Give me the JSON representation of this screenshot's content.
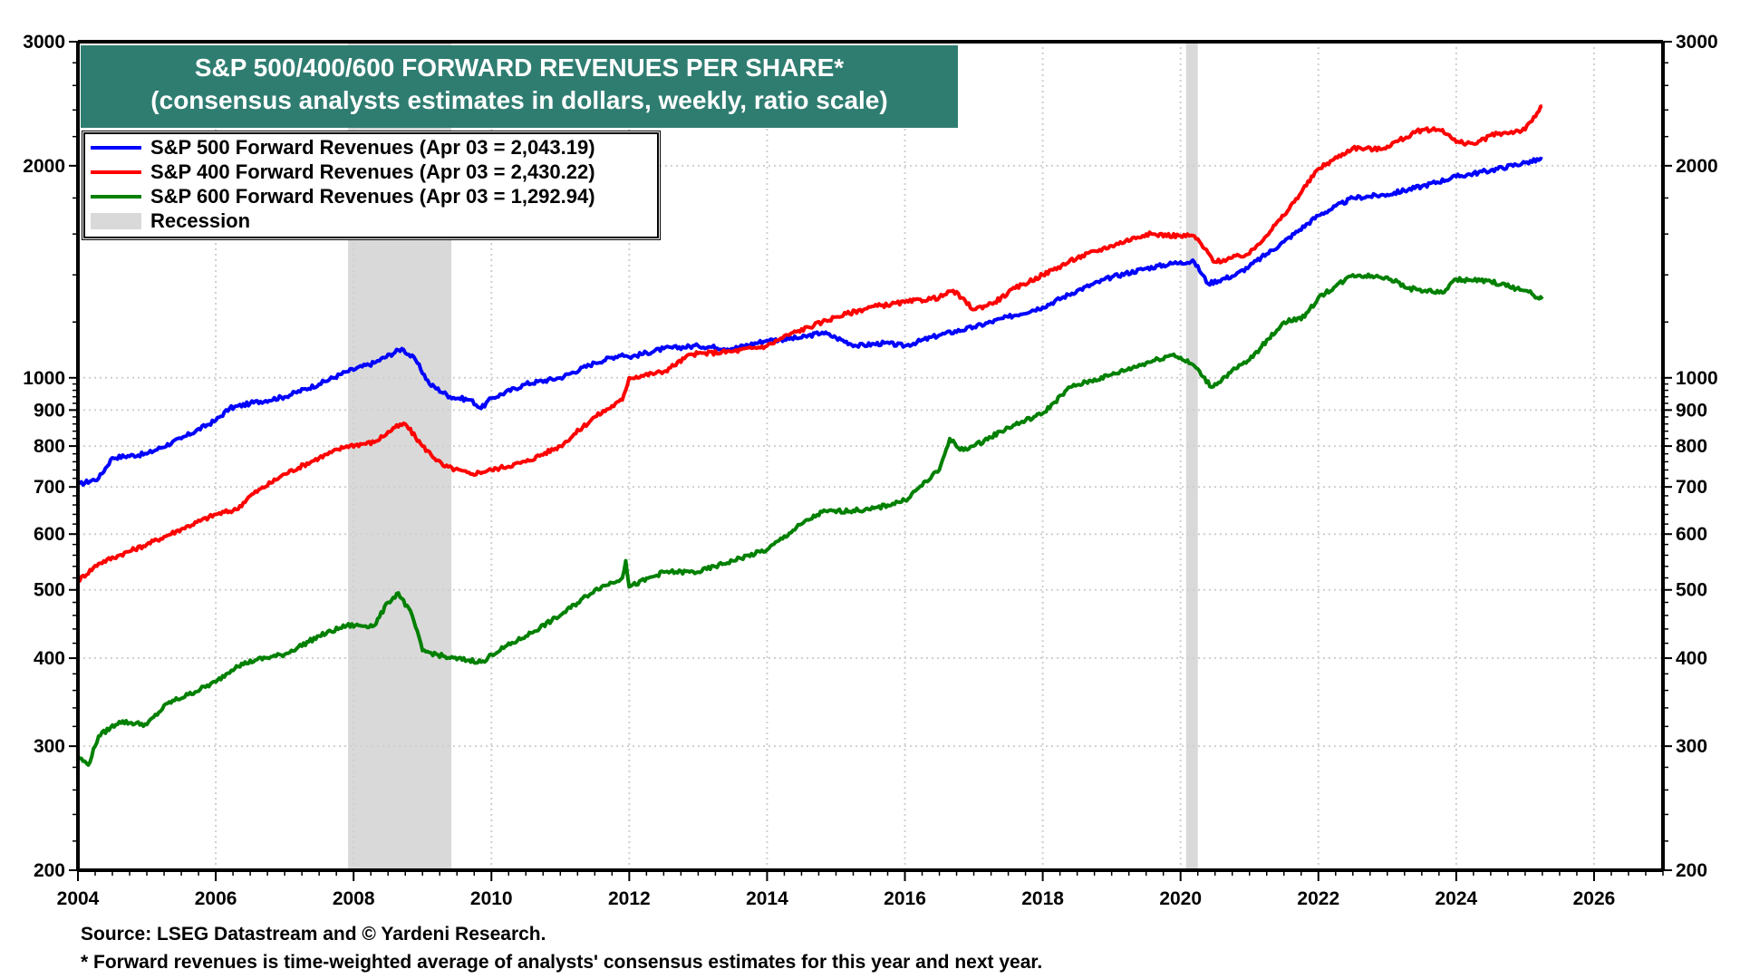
{
  "chart_data": {
    "type": "line",
    "title": "S&P 500/400/600 FORWARD REVENUES PER SHARE*",
    "subtitle": "(consensus analysts estimates in dollars, weekly, ratio scale)",
    "xlabel": "",
    "ylabel": "",
    "yscale": "log",
    "xlim": [
      2004,
      2027
    ],
    "ylim": [
      200,
      3000
    ],
    "x_ticks": [
      "2004",
      "2006",
      "2008",
      "2010",
      "2012",
      "2014",
      "2016",
      "2018",
      "2020",
      "2022",
      "2024",
      "2026"
    ],
    "y_ticks": [
      "200",
      "300",
      "400",
      "500",
      "600",
      "700",
      "800",
      "900",
      "1000",
      "2000",
      "3000"
    ],
    "y_tick_values": [
      200,
      300,
      400,
      500,
      600,
      700,
      800,
      900,
      1000,
      2000,
      3000
    ],
    "grid": true,
    "legend_position": "top-left",
    "legend": [
      "S&P 500 Forward Revenues (Apr 03 = 2,043.19)",
      "S&P 400 Forward Revenues (Apr 03 = 2,430.22)",
      "S&P 600 Forward Revenues (Apr 03 = 1,292.94)",
      "Recession"
    ],
    "recessions": [
      {
        "start": 2007.92,
        "end": 2009.42
      },
      {
        "start": 2020.08,
        "end": 2020.25
      }
    ],
    "series": [
      {
        "name": "S&P 500 Forward Revenues",
        "color": "#0000ff",
        "last_value": 2043.19,
        "points": [
          [
            2004.0,
            705
          ],
          [
            2004.3,
            720
          ],
          [
            2004.5,
            770
          ],
          [
            2005.0,
            780
          ],
          [
            2005.5,
            820
          ],
          [
            2006.0,
            870
          ],
          [
            2006.2,
            905
          ],
          [
            2006.5,
            920
          ],
          [
            2007.0,
            940
          ],
          [
            2007.5,
            980
          ],
          [
            2007.9,
            1020
          ],
          [
            2008.3,
            1050
          ],
          [
            2008.7,
            1100
          ],
          [
            2008.9,
            1060
          ],
          [
            2009.1,
            980
          ],
          [
            2009.4,
            940
          ],
          [
            2009.7,
            930
          ],
          [
            2009.85,
            905
          ],
          [
            2010.0,
            935
          ],
          [
            2010.5,
            980
          ],
          [
            2011.0,
            1000
          ],
          [
            2011.5,
            1050
          ],
          [
            2011.9,
            1080
          ],
          [
            2012.0,
            1070
          ],
          [
            2012.5,
            1100
          ],
          [
            2013.0,
            1110
          ],
          [
            2013.5,
            1100
          ],
          [
            2014.0,
            1130
          ],
          [
            2014.5,
            1140
          ],
          [
            2014.8,
            1160
          ],
          [
            2015.0,
            1140
          ],
          [
            2015.3,
            1110
          ],
          [
            2015.7,
            1120
          ],
          [
            2016.0,
            1110
          ],
          [
            2016.5,
            1150
          ],
          [
            2017.0,
            1180
          ],
          [
            2017.5,
            1220
          ],
          [
            2018.0,
            1260
          ],
          [
            2018.5,
            1330
          ],
          [
            2019.0,
            1390
          ],
          [
            2019.5,
            1430
          ],
          [
            2020.0,
            1460
          ],
          [
            2020.2,
            1460
          ],
          [
            2020.4,
            1360
          ],
          [
            2020.8,
            1400
          ],
          [
            2021.0,
            1440
          ],
          [
            2021.5,
            1560
          ],
          [
            2022.0,
            1700
          ],
          [
            2022.5,
            1800
          ],
          [
            2023.0,
            1820
          ],
          [
            2023.5,
            1870
          ],
          [
            2024.0,
            1930
          ],
          [
            2024.5,
            1970
          ],
          [
            2025.0,
            2020
          ],
          [
            2025.25,
            2043.19
          ]
        ]
      },
      {
        "name": "S&P 400 Forward Revenues",
        "color": "#ff0000",
        "last_value": 2430.22,
        "points": [
          [
            2004.0,
            515
          ],
          [
            2004.3,
            545
          ],
          [
            2004.6,
            560
          ],
          [
            2005.0,
            580
          ],
          [
            2005.5,
            610
          ],
          [
            2006.0,
            640
          ],
          [
            2006.3,
            650
          ],
          [
            2006.5,
            680
          ],
          [
            2007.0,
            730
          ],
          [
            2007.5,
            770
          ],
          [
            2007.9,
            800
          ],
          [
            2008.3,
            810
          ],
          [
            2008.6,
            850
          ],
          [
            2008.75,
            860
          ],
          [
            2009.0,
            800
          ],
          [
            2009.3,
            750
          ],
          [
            2009.7,
            730
          ],
          [
            2010.0,
            740
          ],
          [
            2010.5,
            760
          ],
          [
            2011.0,
            800
          ],
          [
            2011.5,
            880
          ],
          [
            2011.9,
            930
          ],
          [
            2012.0,
            1000
          ],
          [
            2012.5,
            1020
          ],
          [
            2012.9,
            1080
          ],
          [
            2013.5,
            1090
          ],
          [
            2014.0,
            1110
          ],
          [
            2014.3,
            1150
          ],
          [
            2014.8,
            1200
          ],
          [
            2015.0,
            1220
          ],
          [
            2015.5,
            1260
          ],
          [
            2016.0,
            1280
          ],
          [
            2016.5,
            1300
          ],
          [
            2016.7,
            1330
          ],
          [
            2017.0,
            1250
          ],
          [
            2017.3,
            1280
          ],
          [
            2017.6,
            1340
          ],
          [
            2018.0,
            1400
          ],
          [
            2018.5,
            1480
          ],
          [
            2019.0,
            1540
          ],
          [
            2019.5,
            1600
          ],
          [
            2020.0,
            1590
          ],
          [
            2020.2,
            1590
          ],
          [
            2020.5,
            1460
          ],
          [
            2021.0,
            1500
          ],
          [
            2021.5,
            1700
          ],
          [
            2022.0,
            1980
          ],
          [
            2022.5,
            2120
          ],
          [
            2022.9,
            2110
          ],
          [
            2023.5,
            2250
          ],
          [
            2023.8,
            2250
          ],
          [
            2024.0,
            2160
          ],
          [
            2024.3,
            2150
          ],
          [
            2024.5,
            2210
          ],
          [
            2025.0,
            2250
          ],
          [
            2025.25,
            2430.22
          ]
        ]
      },
      {
        "name": "S&P 600 Forward Revenues",
        "color": "#008000",
        "last_value": 1292.94,
        "points": [
          [
            2004.0,
            290
          ],
          [
            2004.15,
            282
          ],
          [
            2004.3,
            310
          ],
          [
            2004.6,
            325
          ],
          [
            2005.0,
            322
          ],
          [
            2005.3,
            345
          ],
          [
            2005.6,
            355
          ],
          [
            2006.0,
            370
          ],
          [
            2006.3,
            390
          ],
          [
            2006.6,
            398
          ],
          [
            2007.0,
            405
          ],
          [
            2007.5,
            430
          ],
          [
            2007.9,
            445
          ],
          [
            2008.3,
            445
          ],
          [
            2008.5,
            480
          ],
          [
            2008.65,
            495
          ],
          [
            2008.85,
            460
          ],
          [
            2009.0,
            410
          ],
          [
            2009.4,
            400
          ],
          [
            2009.9,
            395
          ],
          [
            2010.0,
            405
          ],
          [
            2010.5,
            430
          ],
          [
            2011.0,
            460
          ],
          [
            2011.5,
            500
          ],
          [
            2011.9,
            520
          ],
          [
            2011.95,
            550
          ],
          [
            2012.0,
            505
          ],
          [
            2012.5,
            530
          ],
          [
            2013.0,
            530
          ],
          [
            2013.5,
            550
          ],
          [
            2014.0,
            570
          ],
          [
            2014.5,
            620
          ],
          [
            2014.8,
            645
          ],
          [
            2015.5,
            650
          ],
          [
            2016.0,
            670
          ],
          [
            2016.5,
            740
          ],
          [
            2016.65,
            820
          ],
          [
            2016.8,
            790
          ],
          [
            2017.0,
            800
          ],
          [
            2017.5,
            850
          ],
          [
            2018.0,
            890
          ],
          [
            2018.4,
            970
          ],
          [
            2018.7,
            990
          ],
          [
            2019.0,
            1010
          ],
          [
            2019.5,
            1050
          ],
          [
            2019.9,
            1080
          ],
          [
            2020.2,
            1040
          ],
          [
            2020.45,
            970
          ],
          [
            2020.8,
            1030
          ],
          [
            2021.0,
            1060
          ],
          [
            2021.5,
            1200
          ],
          [
            2021.8,
            1220
          ],
          [
            2022.0,
            1300
          ],
          [
            2022.5,
            1400
          ],
          [
            2023.0,
            1390
          ],
          [
            2023.3,
            1340
          ],
          [
            2023.8,
            1320
          ],
          [
            2024.0,
            1380
          ],
          [
            2024.5,
            1370
          ],
          [
            2025.0,
            1330
          ],
          [
            2025.25,
            1292.94
          ]
        ]
      }
    ]
  },
  "legend": {
    "sp500": "S&P 500 Forward Revenues (Apr 03 = 2,043.19)",
    "sp400": "S&P 400 Forward Revenues (Apr 03 = 2,430.22)",
    "sp600": "S&P 600 Forward Revenues (Apr 03 = 1,292.94)",
    "recession": "Recession"
  },
  "colors": {
    "sp500": "#0000ff",
    "sp400": "#ff0000",
    "sp600": "#008000",
    "recession": "#d9d9d9",
    "title_bg": "#2f7d71"
  },
  "footer": {
    "source": "Source: LSEG Datastream and © Yardeni Research.",
    "note": "* Forward revenues is time-weighted average of analysts' consensus estimates for this year and next year."
  }
}
